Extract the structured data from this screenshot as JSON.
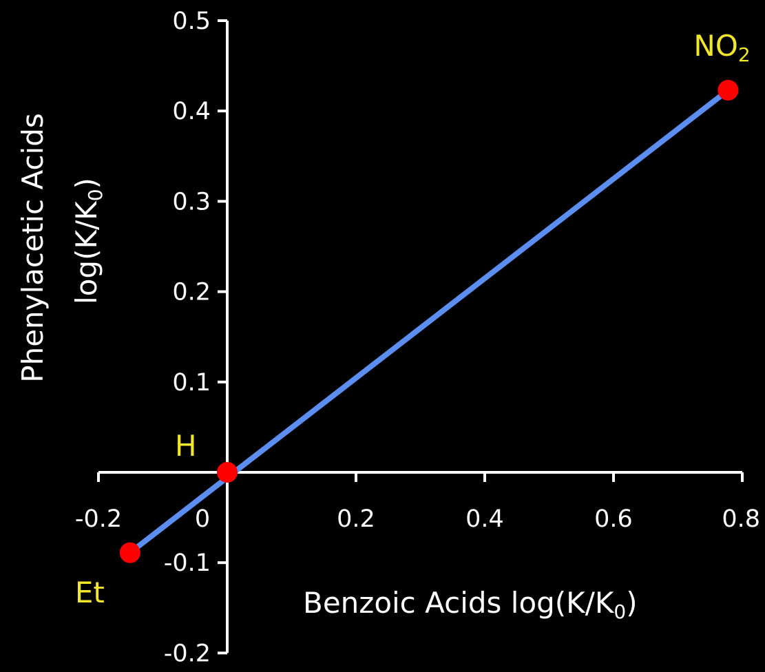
{
  "chart_data": {
    "type": "scatter",
    "x_axis": {
      "range": [
        -0.2,
        0.8
      ],
      "ticks": [
        -0.2,
        0,
        0.2,
        0.4,
        0.6,
        0.8
      ],
      "tick_labels": [
        "-0.2",
        "0",
        "0.2",
        "0.4",
        "0.6",
        "0.8"
      ],
      "label": {
        "main": "Benzoic Acids  log(K/K",
        "sub": "0",
        "end": ")"
      }
    },
    "y_axis": {
      "range": [
        -0.2,
        0.5
      ],
      "ticks": [
        -0.2,
        -0.1,
        0.1,
        0.2,
        0.3,
        0.4,
        0.5
      ],
      "tick_labels": [
        "-0.2",
        "-0.1",
        "0.1",
        "0.2",
        "0.3",
        "0.4",
        "0.5"
      ],
      "label_line1": "Phenylacetic Acids",
      "label_line2": {
        "main": "log(K/K",
        "sub": "0",
        "end": ")"
      }
    },
    "points": [
      {
        "label": "Et",
        "label_sub": "",
        "x": -0.151,
        "y": -0.089
      },
      {
        "label": "H",
        "label_sub": "",
        "x": 0.0,
        "y": 0.0
      },
      {
        "label": "NO",
        "label_sub": "2",
        "x": 0.778,
        "y": 0.423
      }
    ],
    "trend_line": {
      "x": [
        -0.151,
        0.778
      ],
      "y": [
        -0.089,
        0.423
      ]
    },
    "colors": {
      "background": "#000000",
      "axes": "#ffffff",
      "line": "#5b8ef0",
      "point": "#ff0000",
      "point_label": "#f2e62a"
    }
  }
}
